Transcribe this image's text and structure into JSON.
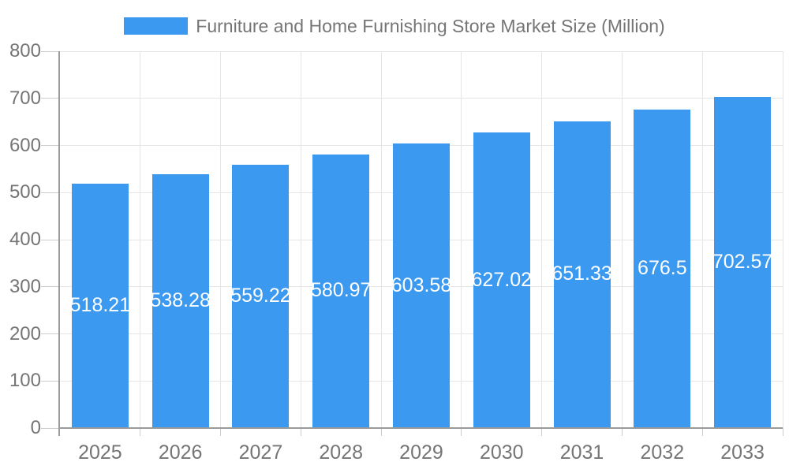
{
  "legend": {
    "label": "Furniture and Home Furnishing Store Market Size (Million)"
  },
  "colors": {
    "bar": "#3B99F0",
    "bar_label": "#FFFFFF",
    "grid": "#E5E5E5",
    "tick": "#CCCCCC",
    "axis": "#9B9B9B",
    "text": "#757575",
    "background": "#FFFFFF"
  },
  "chart_data": {
    "type": "bar",
    "title": "Furniture and Home Furnishing Store Market Size (Million)",
    "categories": [
      "2025",
      "2026",
      "2027",
      "2028",
      "2029",
      "2030",
      "2031",
      "2032",
      "2033"
    ],
    "series": [
      {
        "name": "Furniture and Home Furnishing Store Market Size (Million)",
        "values": [
          518.21,
          538.28,
          559.22,
          580.97,
          603.58,
          627.02,
          651.33,
          676.5,
          702.57
        ]
      }
    ],
    "value_labels": [
      "518.21",
      "538.28",
      "559.22",
      "580.97",
      "603.58",
      "627.02",
      "651.33",
      "676.5",
      "702.57"
    ],
    "xlabel": "",
    "ylabel": "",
    "ylim": [
      0,
      800
    ],
    "yticks": [
      0,
      100,
      200,
      300,
      400,
      500,
      600,
      700,
      800
    ],
    "grid": true,
    "legend_position": "top",
    "value_label_position": "inside-center"
  }
}
